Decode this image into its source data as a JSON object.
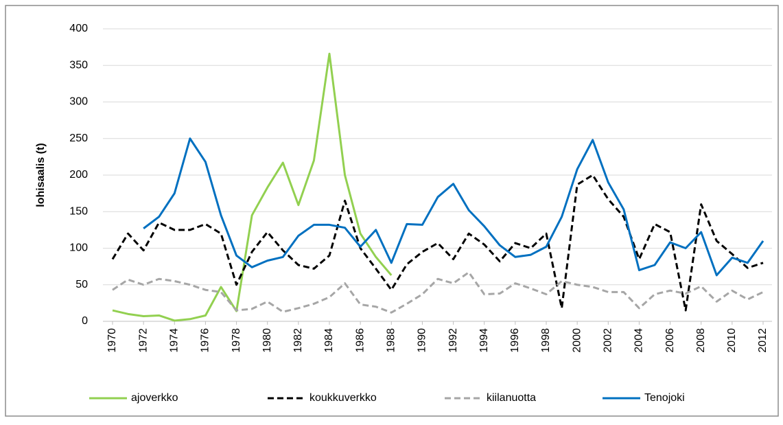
{
  "chart_data": {
    "type": "line",
    "ylabel": "lohisaalis (t)",
    "x": [
      1970,
      1971,
      1972,
      1973,
      1974,
      1975,
      1976,
      1977,
      1978,
      1979,
      1980,
      1981,
      1982,
      1983,
      1984,
      1985,
      1986,
      1987,
      1988,
      1989,
      1990,
      1991,
      1992,
      1993,
      1994,
      1995,
      1996,
      1997,
      1998,
      1999,
      2000,
      2001,
      2002,
      2003,
      2004,
      2005,
      2006,
      2007,
      2008,
      2009,
      2010,
      2011,
      2012
    ],
    "xlim": [
      1970,
      2012
    ],
    "xticks": [
      1970,
      1972,
      1974,
      1976,
      1978,
      1980,
      1982,
      1984,
      1986,
      1988,
      1990,
      1992,
      1994,
      1996,
      1998,
      2000,
      2002,
      2004,
      2006,
      2008,
      2010,
      2012
    ],
    "ylim": [
      0,
      400
    ],
    "yticks": [
      0,
      50,
      100,
      150,
      200,
      250,
      300,
      350,
      400
    ],
    "grid": true,
    "legend": "bottom",
    "series": [
      {
        "name": "ajoverkko",
        "color": "#92d050",
        "style": "solid",
        "values": [
          15,
          10,
          7,
          8,
          1,
          3,
          8,
          47,
          14,
          145,
          183,
          217,
          159,
          220,
          366,
          200,
          120,
          88,
          63,
          null,
          null,
          null,
          null,
          null,
          null,
          null,
          null,
          null,
          null,
          null,
          null,
          null,
          null,
          null,
          null,
          null,
          null,
          null,
          null,
          null,
          null,
          null,
          null
        ]
      },
      {
        "name": "koukkuverkko",
        "color": "#000000",
        "style": "dashed",
        "values": [
          85,
          120,
          97,
          135,
          125,
          125,
          133,
          120,
          50,
          95,
          122,
          97,
          77,
          72,
          90,
          165,
          100,
          72,
          43,
          78,
          95,
          107,
          85,
          120,
          105,
          82,
          107,
          100,
          120,
          18,
          187,
          200,
          167,
          143,
          85,
          133,
          122,
          15,
          160,
          110,
          92,
          73,
          80
        ]
      },
      {
        "name": "kiilanuotta",
        "color": "#a6a6a6",
        "style": "dashed",
        "values": [
          43,
          57,
          50,
          58,
          55,
          50,
          43,
          40,
          15,
          17,
          27,
          13,
          18,
          24,
          33,
          52,
          23,
          20,
          12,
          24,
          37,
          58,
          52,
          67,
          37,
          38,
          52,
          45,
          37,
          55,
          50,
          47,
          40,
          40,
          18,
          37,
          42,
          38,
          48,
          27,
          42,
          30,
          40
        ]
      },
      {
        "name": "Tenojoki",
        "color": "#0070c0",
        "style": "solid",
        "values": [
          null,
          null,
          127,
          143,
          175,
          250,
          218,
          145,
          90,
          74,
          83,
          88,
          117,
          132,
          132,
          128,
          102,
          125,
          80,
          133,
          132,
          170,
          188,
          152,
          130,
          104,
          88,
          91,
          102,
          143,
          208,
          248,
          190,
          153,
          70,
          77,
          108,
          100,
          122,
          63,
          87,
          80,
          110
        ]
      }
    ]
  }
}
